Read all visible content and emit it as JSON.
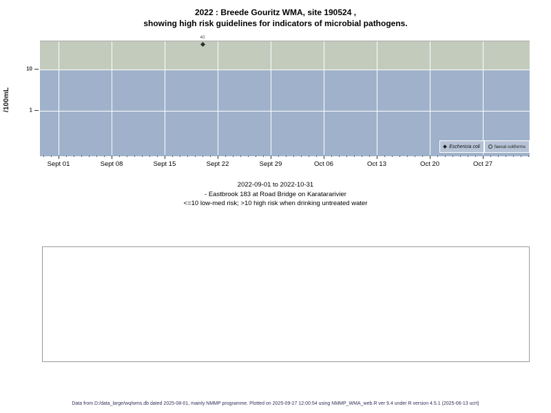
{
  "title": {
    "line1": "2022 : Breede Gouritz WMA, site 190524 ,",
    "line2": "showing high risk guidelines for indicators of microbial pathogens."
  },
  "chart_data": {
    "type": "scatter",
    "title": "2022 : Breede Gouritz WMA, site 190524, showing high risk guidelines for indicators of microbial pathogens.",
    "xlabel": "",
    "ylabel": "/100mL",
    "y_scale": "log10",
    "ylim": [
      0.08,
      48
    ],
    "x_range": [
      "2022-09-01",
      "2022-10-31"
    ],
    "x_ticks": [
      "Sept 01",
      "Sept 08",
      "Sept 15",
      "Sept 22",
      "Sept 29",
      "Oct 06",
      "Oct 13",
      "Oct 20",
      "Oct 27"
    ],
    "y_ticks": [
      {
        "label": "10",
        "value": 10
      },
      {
        "label": "1",
        "value": 1
      }
    ],
    "high_risk_threshold": 10,
    "bands": [
      {
        "name": "high risk (>10)",
        "color": "#c3cbbd"
      },
      {
        "name": "low-med risk (<=10)",
        "color": "#a0b2cb"
      }
    ],
    "grid": true,
    "series": [
      {
        "name": "Eschericia coli",
        "symbol": "filled-diamond",
        "points": [
          {
            "date": "2022-09-20",
            "x_day_offset": 19,
            "value": 40,
            "label": "40"
          }
        ]
      },
      {
        "name": "faecal coliforms",
        "symbol": "open-circle",
        "points": []
      }
    ],
    "legend": {
      "position": "bottom-right",
      "entries": [
        {
          "label": "Eschericia coli",
          "italic": true,
          "symbol": "filled-diamond"
        },
        {
          "label": "faecal coliforms",
          "italic": false,
          "symbol": "open-circle"
        }
      ]
    }
  },
  "subtitle": {
    "lines": [
      "2022-09-01 to 2022-10-31",
      "- Eastbrook 183 at Road Bridge on Karatararivier",
      "<=10 low-med risk; >10 high risk when drinking untreated water"
    ]
  },
  "footer": {
    "text": "Data from D:/data_large/wq/wms.db dated 2025-08-01, mainly NMMP programme. Plotted on 2025-09-27 12:00:54 using NMMP_WMA_web.R ver 9.4 under R version 4.5.1 (2025-06-13 ucrt)"
  }
}
